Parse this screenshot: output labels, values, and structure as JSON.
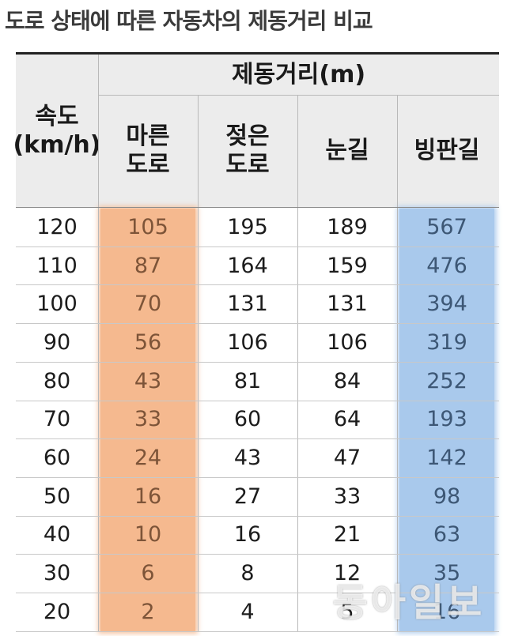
{
  "title": "도로 상태에 따른 자동차의 제동거리 비교",
  "chart_data": {
    "type": "table",
    "title": "도로 상태에 따른 자동차의 제동거리 비교",
    "group_header": "제동거리(m)",
    "row_header_line1": "속도",
    "row_header_line2": "(km/h)",
    "columns": [
      {
        "line1": "마른",
        "line2": "도로"
      },
      {
        "line1": "젖은",
        "line2": "도로"
      },
      {
        "line1": "눈길",
        "line2": ""
      },
      {
        "line1": "빙판길",
        "line2": ""
      }
    ],
    "rows": [
      {
        "speed": "120",
        "values": [
          "105",
          "195",
          "189",
          "567"
        ]
      },
      {
        "speed": "110",
        "values": [
          "87",
          "164",
          "159",
          "476"
        ]
      },
      {
        "speed": "100",
        "values": [
          "70",
          "131",
          "131",
          "394"
        ]
      },
      {
        "speed": "90",
        "values": [
          "56",
          "106",
          "106",
          "319"
        ]
      },
      {
        "speed": "80",
        "values": [
          "43",
          "81",
          "84",
          "252"
        ]
      },
      {
        "speed": "70",
        "values": [
          "33",
          "60",
          "64",
          "193"
        ]
      },
      {
        "speed": "60",
        "values": [
          "24",
          "43",
          "47",
          "142"
        ]
      },
      {
        "speed": "50",
        "values": [
          "16",
          "27",
          "33",
          "98"
        ]
      },
      {
        "speed": "40",
        "values": [
          "10",
          "16",
          "21",
          "63"
        ]
      },
      {
        "speed": "30",
        "values": [
          "6",
          "8",
          "12",
          "35"
        ]
      },
      {
        "speed": "20",
        "values": [
          "2",
          "4",
          "5",
          "16"
        ]
      }
    ]
  },
  "highlight_colors": {
    "dry_road": "#f5b98f",
    "ice_road": "#a9c9ec"
  },
  "watermark": "동아일보"
}
